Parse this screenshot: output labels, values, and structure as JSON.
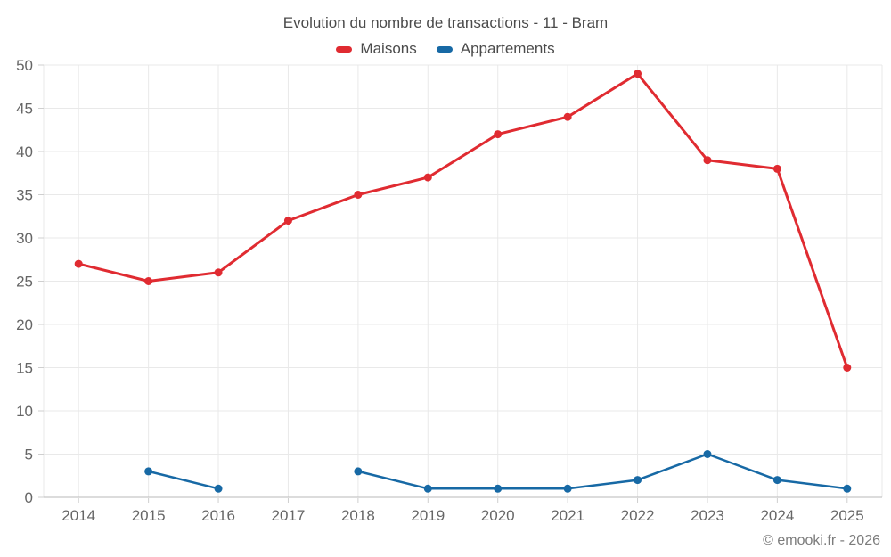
{
  "chart_data": {
    "type": "line",
    "title": "Evolution du nombre de transactions - 11 - Bram",
    "categories": [
      "2014",
      "2015",
      "2016",
      "2017",
      "2018",
      "2019",
      "2020",
      "2021",
      "2022",
      "2023",
      "2024",
      "2025"
    ],
    "series": [
      {
        "name": "Maisons",
        "color": "#e02b31",
        "values": [
          27,
          25,
          26,
          32,
          35,
          37,
          42,
          44,
          49,
          39,
          38,
          15
        ]
      },
      {
        "name": "Appartements",
        "color": "#1769a5",
        "values": [
          null,
          3,
          1,
          null,
          3,
          1,
          1,
          1,
          2,
          5,
          2,
          1
        ]
      }
    ],
    "xlabel": "",
    "ylabel": "",
    "ylim": [
      0,
      50
    ],
    "ytick_step": 5,
    "grid": true,
    "legend_position": "top"
  },
  "footer": {
    "copyright": "© emooki.fr - 2026"
  }
}
